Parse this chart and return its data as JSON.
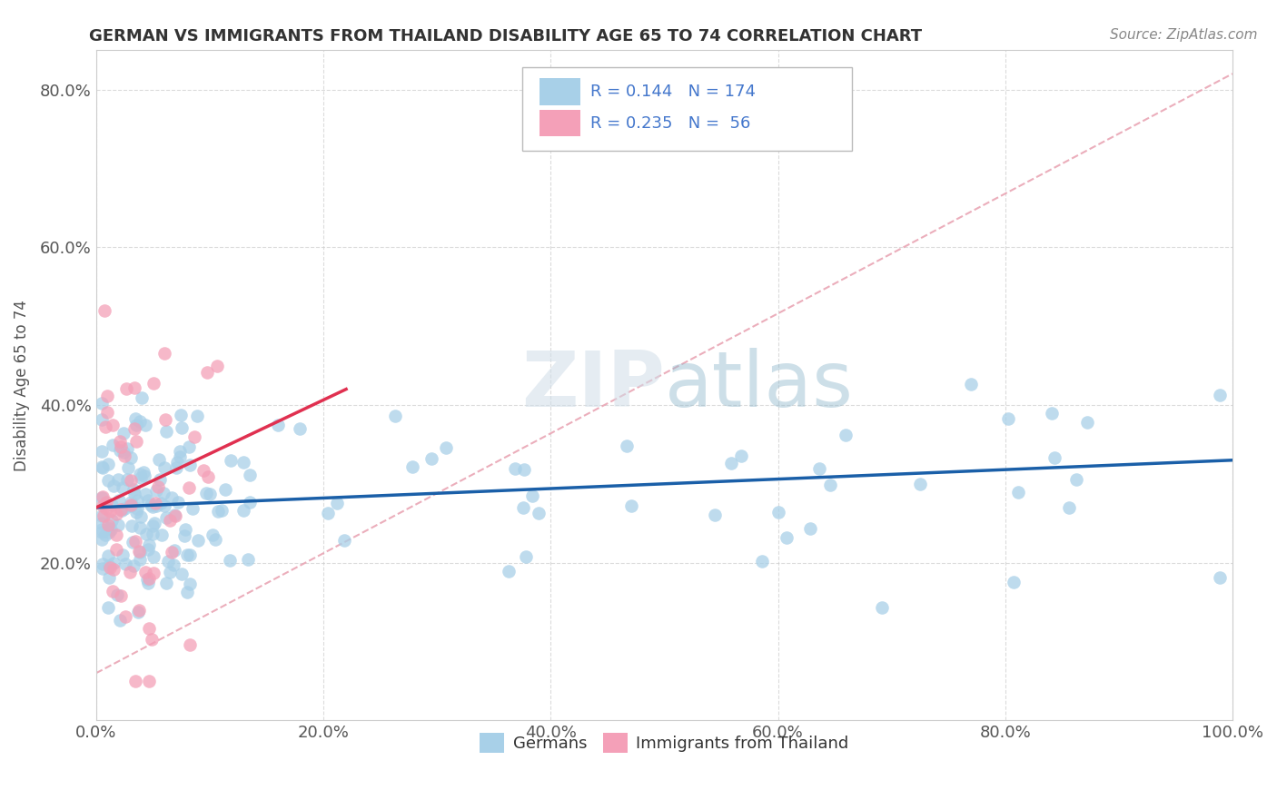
{
  "title": "GERMAN VS IMMIGRANTS FROM THAILAND DISABILITY AGE 65 TO 74 CORRELATION CHART",
  "source": "Source: ZipAtlas.com",
  "ylabel": "Disability Age 65 to 74",
  "german_color": "#a8d0e8",
  "thai_color": "#f4a0b8",
  "german_line_color": "#1a5fa8",
  "thai_line_color": "#e03050",
  "dash_line_color": "#e8a0b0",
  "R_german": 0.144,
  "N_german": 174,
  "R_thai": 0.235,
  "N_thai": 56,
  "background_color": "#ffffff",
  "grid_color": "#cccccc",
  "tick_color": "#4477cc",
  "title_color": "#333333"
}
